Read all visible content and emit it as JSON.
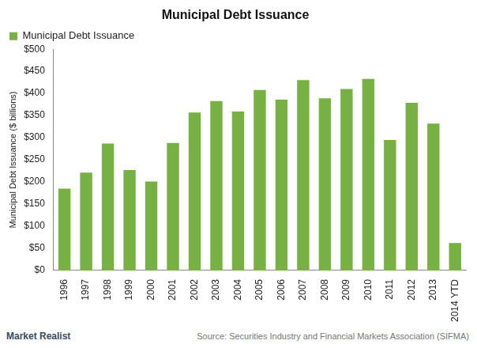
{
  "chart_data": {
    "type": "bar",
    "title": "Municipal Debt Issuance",
    "y_label": "Municipal Debt Issuance ($ billions)",
    "annotations": [
      "Market Realist",
      "Source: Securities Industry and Financial Markets Association (SIFMA)"
    ],
    "categories": [
      "1996",
      "1997",
      "1998",
      "1999",
      "2000",
      "2001",
      "2002",
      "2003",
      "2004",
      "2005",
      "2006",
      "2007",
      "2008",
      "2009",
      "2010",
      "2011",
      "2012",
      "2013",
      "2014 YTD"
    ],
    "series": [
      {
        "name": "Municipal Debt Issuance",
        "color": "#77b043",
        "values": [
          185,
          221,
          287,
          227,
          201,
          288,
          357,
          383,
          359,
          408,
          386,
          430,
          389,
          410,
          433,
          295,
          379,
          332,
          62
        ]
      }
    ],
    "ylim": [
      0,
      500
    ],
    "yticks": [
      {
        "value": 0,
        "label": "$0"
      },
      {
        "value": 50,
        "label": "$50"
      },
      {
        "value": 100,
        "label": "$100"
      },
      {
        "value": 150,
        "label": "$150"
      },
      {
        "value": 200,
        "label": "$200"
      },
      {
        "value": 250,
        "label": "$250"
      },
      {
        "value": 300,
        "label": "$300"
      },
      {
        "value": 350,
        "label": "$350"
      },
      {
        "value": 400,
        "label": "$400"
      },
      {
        "value": 450,
        "label": "$450"
      },
      {
        "value": 500,
        "label": "$500"
      }
    ],
    "grid": false,
    "legend": "top-left"
  }
}
